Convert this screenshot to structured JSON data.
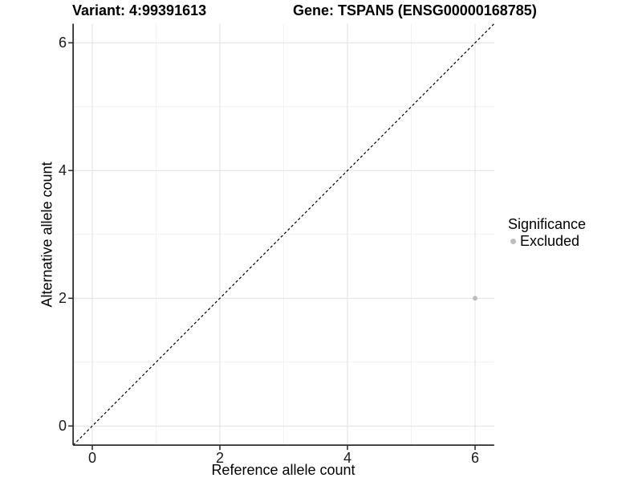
{
  "legend": {
    "title": "Significance",
    "items": [
      {
        "label": "Excluded",
        "color": "#bebebe"
      }
    ]
  },
  "chart_data": {
    "type": "scatter",
    "title_left": "Variant: 4:99391613",
    "title_right": "Gene: TSPAN5 (ENSG00000168785)",
    "xlabel": "Reference allele count",
    "ylabel": "Alternative allele count",
    "xlim": [
      -0.3,
      6.3
    ],
    "ylim": [
      -0.3,
      6.3
    ],
    "x_ticks": [
      0,
      2,
      4,
      6
    ],
    "y_ticks": [
      0,
      2,
      4,
      6
    ],
    "x_minor_ticks": [
      1,
      3,
      5
    ],
    "y_minor_ticks": [
      1,
      3,
      5
    ],
    "grid": "major+minor",
    "legend_position": "right",
    "series": [
      {
        "name": "Excluded",
        "color": "#bebebe",
        "points": [
          {
            "x": 6,
            "y": 2
          }
        ]
      }
    ],
    "reference_line": {
      "kind": "identity",
      "slope": 1,
      "intercept": 0,
      "style": "dashed",
      "color": "#000000"
    }
  },
  "style_colors": {
    "background": "#ffffff",
    "grid_major": "#e4e4e4",
    "grid_minor": "#f1f1f1",
    "axis_line": "#2f2f2f",
    "tick_mark": "#2f2f2f",
    "tick_label": "#1a1a1a",
    "point_gray": "#bebebe"
  }
}
